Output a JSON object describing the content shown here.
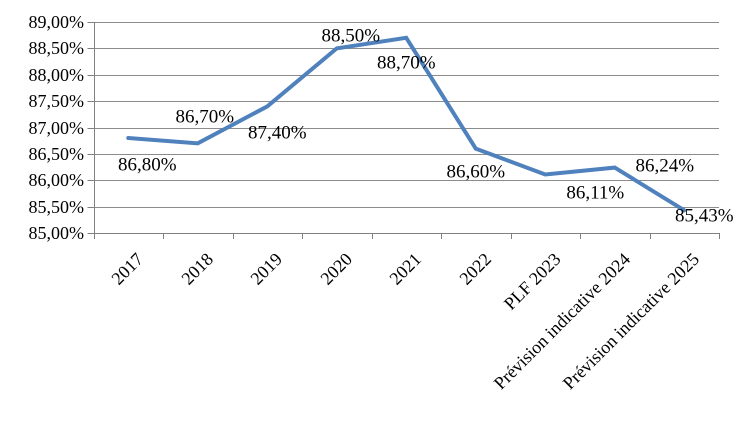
{
  "chart_data": {
    "type": "line",
    "title": "",
    "xlabel": "",
    "ylabel": "",
    "categories": [
      "2017",
      "2018",
      "2019",
      "2020",
      "2021",
      "2022",
      "PLF 2023",
      "Prévision indicative 2024",
      "Prévision indicative 2025"
    ],
    "series": [
      {
        "name": "",
        "values": [
          86.8,
          86.7,
          87.4,
          88.5,
          88.7,
          86.6,
          86.11,
          86.24,
          85.43
        ],
        "data_labels": [
          "86,80%",
          "86,70%",
          "87,40%",
          "88,50%",
          "88,70%",
          "86,60%",
          "86,11%",
          "86,24%",
          "85,43%"
        ],
        "label_offsets": [
          [
            19,
            27
          ],
          [
            7,
            -26
          ],
          [
            10,
            27
          ],
          [
            14,
            -12
          ],
          [
            0,
            25
          ],
          [
            0,
            23
          ],
          [
            50,
            19
          ],
          [
            50,
            -2
          ],
          [
            20,
            6
          ]
        ]
      }
    ],
    "ylim": [
      85.0,
      89.0
    ],
    "y_tick_step": 0.5,
    "y_tick_labels": [
      "85,00%",
      "85,50%",
      "86,00%",
      "86,50%",
      "87,00%",
      "87,50%",
      "88,00%",
      "88,50%",
      "89,00%"
    ],
    "grid": true,
    "legend_position": "none",
    "colors": {
      "line": "#4F81BD",
      "gridline": "#8C8C8C",
      "axis": "#808080",
      "text": "#000000",
      "background": "#FFFFFF"
    }
  }
}
